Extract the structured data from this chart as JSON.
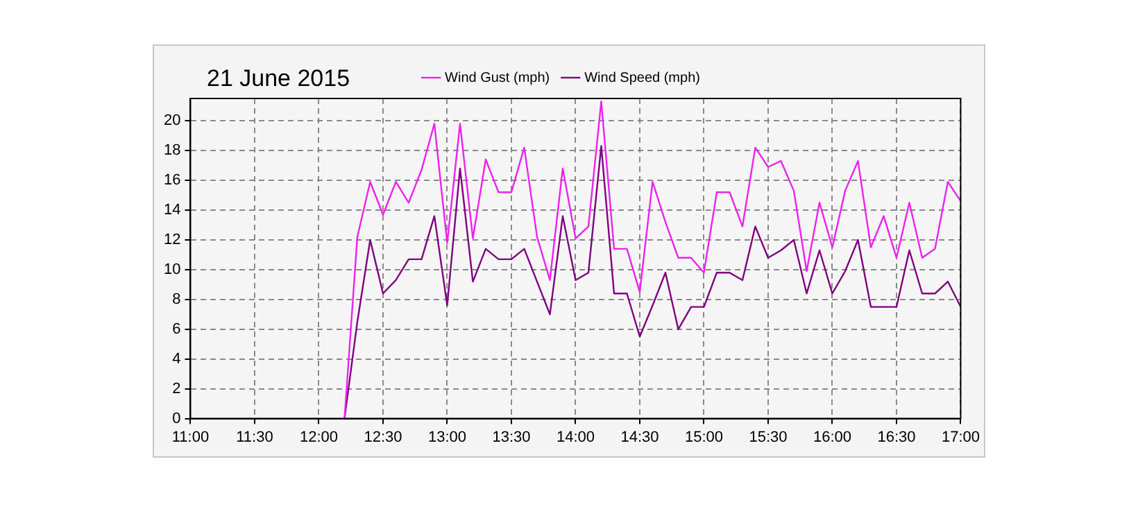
{
  "chart_data": {
    "type": "line",
    "title": "21 June 2015",
    "x": [
      12.2,
      12.3,
      12.4,
      12.5,
      12.6,
      12.7,
      12.8,
      12.9,
      13.0,
      13.1,
      13.2,
      13.3,
      13.4,
      13.5,
      13.6,
      13.7,
      13.8,
      13.9,
      14.0,
      14.1,
      14.2,
      14.3,
      14.4,
      14.5,
      14.6,
      14.7,
      14.8,
      14.9,
      15.0,
      15.1,
      15.2,
      15.3,
      15.4,
      15.5,
      15.6,
      15.7,
      15.8,
      15.9,
      16.0,
      16.1,
      16.2,
      16.3,
      16.4,
      16.5,
      16.6,
      16.7,
      16.8,
      16.9,
      17.0
    ],
    "series": [
      {
        "name": "Wind Gust (mph)",
        "color": "#ee22ee",
        "values": [
          0,
          12.2,
          15.9,
          13.7,
          15.9,
          14.5,
          16.7,
          19.8,
          11.8,
          19.8,
          12.1,
          17.4,
          15.2,
          15.2,
          18.2,
          12.2,
          9.3,
          16.8,
          12.1,
          12.9,
          21.3,
          11.4,
          11.4,
          8.5,
          15.9,
          13.2,
          10.8,
          10.8,
          9.8,
          15.2,
          15.2,
          12.9,
          18.2,
          16.9,
          17.3,
          15.3,
          9.9,
          14.5,
          11.5,
          15.3,
          17.3,
          11.5,
          13.6,
          10.8,
          14.5,
          10.8,
          11.4,
          15.9,
          14.6
        ]
      },
      {
        "name": "Wind Speed (mph)",
        "color": "#800080",
        "values": [
          0,
          6.5,
          12,
          8.4,
          9.3,
          10.7,
          10.7,
          13.6,
          7.6,
          16.8,
          9.2,
          11.4,
          10.7,
          10.7,
          11.4,
          9.2,
          7.0,
          13.6,
          9.3,
          9.8,
          18.3,
          8.4,
          8.4,
          5.5,
          7.6,
          9.8,
          6.0,
          7.5,
          7.5,
          9.8,
          9.8,
          9.3,
          12.9,
          10.8,
          11.3,
          12.0,
          8.4,
          11.3,
          8.4,
          9.9,
          12.0,
          7.5,
          7.5,
          7.5,
          11.3,
          8.4,
          8.4,
          9.2,
          7.5
        ]
      }
    ],
    "xlim": [
      11,
      17
    ],
    "xticks": [
      {
        "value": 11,
        "label": "11:00"
      },
      {
        "value": 11.5,
        "label": "11:30"
      },
      {
        "value": 12,
        "label": "12:00"
      },
      {
        "value": 12.5,
        "label": "12:30"
      },
      {
        "value": 13,
        "label": "13:00"
      },
      {
        "value": 13.5,
        "label": "13:30"
      },
      {
        "value": 14,
        "label": "14:00"
      },
      {
        "value": 14.5,
        "label": "14:30"
      },
      {
        "value": 15,
        "label": "15:00"
      },
      {
        "value": 15.5,
        "label": "15:30"
      },
      {
        "value": 16,
        "label": "16:00"
      },
      {
        "value": 16.5,
        "label": "16:30"
      },
      {
        "value": 17,
        "label": "17:00"
      }
    ],
    "ylim": [
      0,
      21.5
    ],
    "yticks": [
      0,
      2,
      4,
      6,
      8,
      10,
      12,
      14,
      16,
      18,
      20
    ],
    "grid": true,
    "legend": "top",
    "marker": "none",
    "line_style": "solid"
  }
}
